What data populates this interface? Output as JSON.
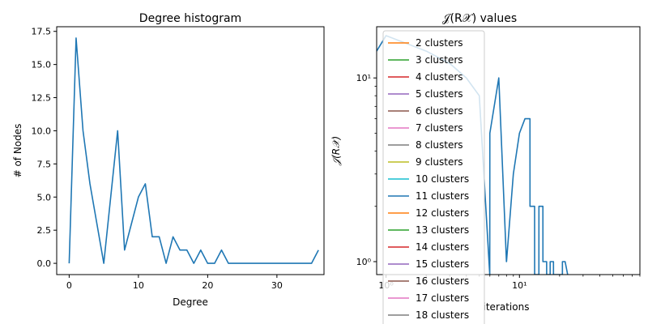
{
  "chart_data": [
    {
      "type": "line",
      "title": "Degree histogram",
      "xlabel": "Degree",
      "ylabel": "# of Nodes",
      "xlim": [
        -1.8,
        36.8
      ],
      "ylim": [
        -0.85,
        17.85
      ],
      "x_ticks": [
        0,
        10,
        20,
        30
      ],
      "y_ticks": [
        0.0,
        2.5,
        5.0,
        7.5,
        10.0,
        12.5,
        15.0,
        17.5
      ],
      "x_tick_labels": [
        "0",
        "10",
        "20",
        "30"
      ],
      "y_tick_labels": [
        "0.0",
        "2.5",
        "5.0",
        "7.5",
        "10.0",
        "12.5",
        "15.0",
        "17.5"
      ],
      "color": "#1f77b4",
      "x": [
        0,
        1,
        2,
        3,
        4,
        5,
        6,
        7,
        8,
        9,
        10,
        11,
        12,
        13,
        14,
        15,
        16,
        17,
        18,
        19,
        20,
        21,
        22,
        23,
        24,
        25,
        26,
        27,
        28,
        29,
        30,
        31,
        32,
        33,
        34,
        35,
        36
      ],
      "values": [
        0,
        17,
        10,
        6,
        3,
        0,
        5,
        10,
        1,
        3,
        5,
        6,
        2,
        2,
        0,
        2,
        1,
        1,
        0,
        1,
        0,
        0,
        1,
        0,
        0,
        0,
        0,
        0,
        0,
        0,
        0,
        0,
        0,
        0,
        0,
        0,
        1
      ]
    },
    {
      "type": "line",
      "title": "𝒥(R𝒳) values",
      "xlabel": "iterations",
      "ylabel": "𝒥(R𝒳)",
      "x_scale": "log",
      "y_scale": "log",
      "xlim": [
        0.85,
        80
      ],
      "ylim": [
        0.85,
        19
      ],
      "x_tick_labels": [
        "10⁰",
        "10¹"
      ],
      "y_tick_labels": [
        "10⁰",
        "10¹"
      ],
      "legend_position": "upper-left",
      "series": [
        {
          "name": "2 clusters",
          "color": "#ff7f0e"
        },
        {
          "name": "3 clusters",
          "color": "#2ca02c"
        },
        {
          "name": "4 clusters",
          "color": "#d62728"
        },
        {
          "name": "5 clusters",
          "color": "#9467bd"
        },
        {
          "name": "6 clusters",
          "color": "#8c564b"
        },
        {
          "name": "7 clusters",
          "color": "#e377c2"
        },
        {
          "name": "8 clusters",
          "color": "#7f7f7f"
        },
        {
          "name": "9 clusters",
          "color": "#bcbd22"
        },
        {
          "name": "10 clusters",
          "color": "#17becf"
        },
        {
          "name": "11 clusters",
          "color": "#1f77b4",
          "x": [
            0.85,
            1.0,
            2.0,
            3.0,
            4.0,
            5.0,
            5.99,
            6.0,
            7.0,
            7.99,
            8.0,
            9.0,
            10.0,
            11.0,
            11.99,
            12.0,
            12.99,
            13.0,
            13.99,
            14.0,
            14.99,
            15.0,
            15.99,
            16.0,
            16.99,
            17.0,
            17.99,
            18.0,
            19.0,
            20.0,
            20.99,
            21.0,
            22.0,
            22.99,
            23.0
          ],
          "values": [
            14,
            17,
            14,
            12,
            10,
            8,
            0.85,
            5,
            10,
            1,
            1,
            3,
            5,
            6,
            6,
            2,
            2,
            0.85,
            0.85,
            2,
            2,
            1,
            1,
            0.85,
            0.85,
            1,
            1,
            0.85,
            0.85,
            0.85,
            0.85,
            1,
            1,
            0.85,
            0.85
          ]
        },
        {
          "name": "12 clusters",
          "color": "#ff7f0e"
        },
        {
          "name": "13 clusters",
          "color": "#2ca02c"
        },
        {
          "name": "14 clusters",
          "color": "#d62728"
        },
        {
          "name": "15 clusters",
          "color": "#9467bd"
        },
        {
          "name": "16 clusters",
          "color": "#8c564b"
        },
        {
          "name": "17 clusters",
          "color": "#e377c2"
        },
        {
          "name": "18 clusters",
          "color": "#7f7f7f"
        }
      ]
    }
  ]
}
